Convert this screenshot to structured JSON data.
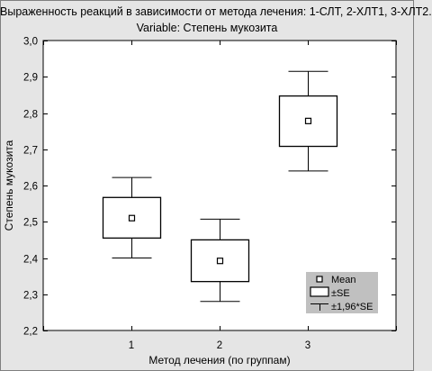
{
  "chart_data": {
    "type": "box",
    "title": "Выраженность реакций в зависимости от метода лечения: 1-СЛТ, 2-ХЛТ1, 3-ХЛТ2.",
    "subtitle": "Variable: Степень мукозита",
    "xlabel": "Метод лечения (по группам)",
    "ylabel": "Степень мукозита",
    "categories": [
      "1",
      "2",
      "3"
    ],
    "xlim": [
      0,
      4
    ],
    "ylim": [
      2.2,
      3.0
    ],
    "yticks": [
      "2,2",
      "2,3",
      "2,4",
      "2,5",
      "2,6",
      "2,7",
      "2,8",
      "2,9",
      "3,0"
    ],
    "ytick_values": [
      2.2,
      2.3,
      2.4,
      2.5,
      2.6,
      2.7,
      2.8,
      2.9,
      3.0
    ],
    "series": [
      {
        "category": "1",
        "mean": 2.51,
        "se_low": 2.455,
        "se_high": 2.567,
        "ci_low": 2.4,
        "ci_high": 2.622
      },
      {
        "category": "2",
        "mean": 2.392,
        "se_low": 2.335,
        "se_high": 2.45,
        "ci_low": 2.28,
        "ci_high": 2.507
      },
      {
        "category": "3",
        "mean": 2.778,
        "se_low": 2.708,
        "se_high": 2.847,
        "ci_low": 2.64,
        "ci_high": 2.915
      }
    ],
    "legend": {
      "position": "bottom-right",
      "items": [
        {
          "label": "Mean",
          "symbol": "square-marker"
        },
        {
          "label": "±SE",
          "symbol": "box"
        },
        {
          "label": "±1,96*SE",
          "symbol": "whisker"
        }
      ]
    },
    "grid": false,
    "colors": {
      "background": "#e5e5e5",
      "plot": "#ffffff",
      "line": "#000000",
      "legend_bg": "#c0c0c0"
    }
  }
}
